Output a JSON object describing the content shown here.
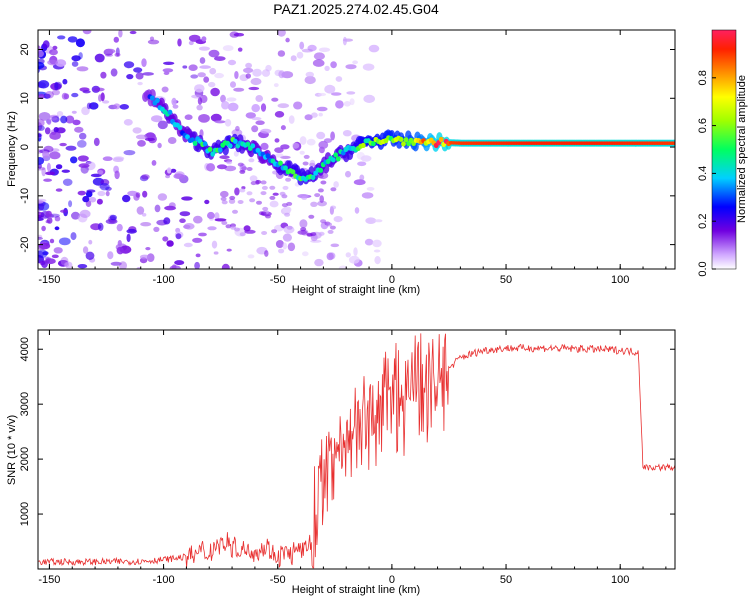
{
  "chart_data": [
    {
      "type": "heatmap",
      "title": "PAZ1.2025.274.02.45.G04",
      "xlabel": "Height of straight line (km)",
      "ylabel": "Frequency (Hz)",
      "xlim": [
        -155,
        124
      ],
      "ylim": [
        -25,
        24
      ],
      "xticks": [
        -150,
        -100,
        -50,
        0,
        50,
        100
      ],
      "yticks": [
        -20,
        -10,
        0,
        10,
        20
      ],
      "colorbar": {
        "label": "Normalized spectral amplitude",
        "range": [
          0,
          1
        ],
        "ticks": [
          "0.0",
          "0.2",
          "0.4",
          "0.6",
          "0.8"
        ]
      },
      "ridge": {
        "x": [
          -105,
          -98,
          -92,
          -85,
          -78,
          -70,
          -62,
          -55,
          -48,
          -40,
          -34,
          -28,
          -20,
          -12,
          -5,
          0,
          10,
          20,
          30,
          60,
          90,
          124
        ],
        "y": [
          10,
          7,
          3,
          1,
          -1,
          1,
          0,
          -2,
          -4,
          -6,
          -6,
          -3,
          -1,
          1,
          1.5,
          1.5,
          1.2,
          1,
          0.8,
          0.8,
          0.8,
          0.8
        ],
        "amplitude": [
          0.3,
          0.4,
          0.35,
          0.45,
          0.45,
          0.5,
          0.4,
          0.35,
          0.45,
          0.5,
          0.45,
          0.4,
          0.45,
          0.55,
          0.6,
          0.62,
          0.68,
          0.88,
          0.9,
          0.92,
          0.92,
          0.9
        ]
      }
    },
    {
      "type": "line",
      "xlabel": "Height of straight line (km)",
      "ylabel": "SNR (10 * v/v)",
      "xlim": [
        -155,
        124
      ],
      "ylim": [
        0,
        4350
      ],
      "xticks": [
        -150,
        -100,
        -50,
        0,
        50,
        100
      ],
      "yticks": [
        1000,
        2000,
        3000,
        4000
      ],
      "series": [
        {
          "name": "SNR",
          "color": "#e83030",
          "x": [
            -155,
            -130,
            -110,
            -100,
            -90,
            -80,
            -75,
            -70,
            -60,
            -55,
            -50,
            -40,
            -35,
            -32,
            -30,
            -25,
            -20,
            -15,
            -10,
            -5,
            0,
            5,
            8,
            10,
            15,
            20,
            25,
            30,
            40,
            50,
            60,
            70,
            80,
            90,
            100,
            108,
            110,
            124
          ],
          "values": [
            130,
            130,
            140,
            170,
            220,
            320,
            500,
            420,
            320,
            400,
            260,
            310,
            480,
            1400,
            1800,
            2100,
            2400,
            2600,
            2700,
            2850,
            3050,
            3150,
            3200,
            3250,
            3300,
            3400,
            3650,
            3850,
            3980,
            4020,
            4020,
            4020,
            4010,
            4000,
            3980,
            3950,
            1850,
            1850
          ]
        }
      ]
    }
  ]
}
